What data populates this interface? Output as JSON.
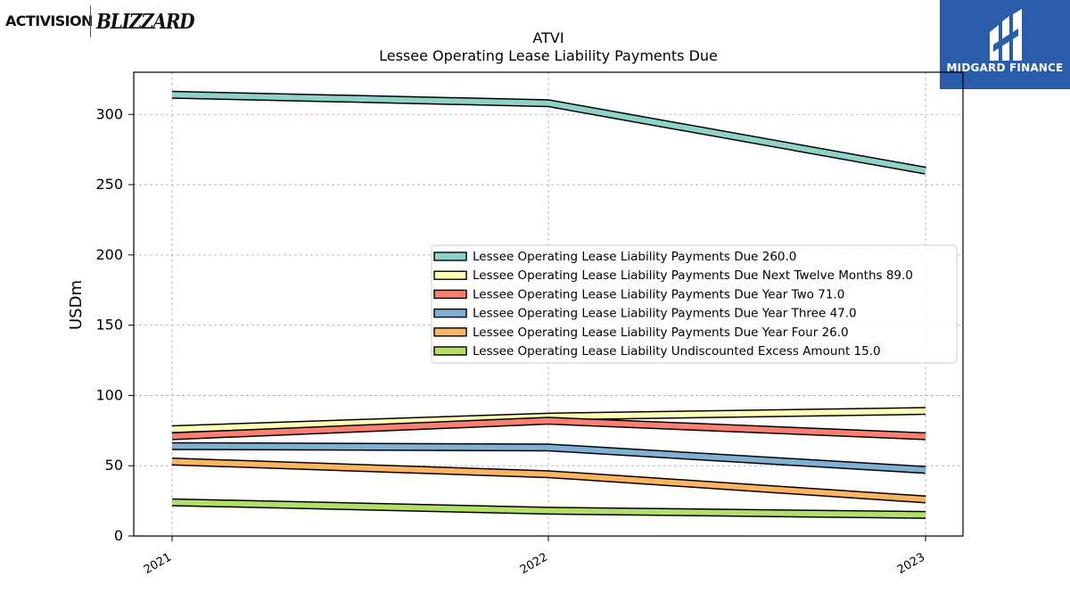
{
  "logos": {
    "left_primary": "ACTIVISION",
    "left_secondary": "BLIZZARD",
    "right_name": "MIDGARD FINANCE",
    "right_bg": "#2a5caa"
  },
  "chart_data": {
    "type": "line",
    "title": "ATVI",
    "subtitle": "Lessee Operating Lease Liability Payments Due",
    "xlabel": "",
    "ylabel": "USDm",
    "categories": [
      "2021",
      "2022",
      "2023"
    ],
    "ylim": [
      0,
      330
    ],
    "yticks": [
      0,
      50,
      100,
      150,
      200,
      250,
      300
    ],
    "grid": true,
    "legend_position": "center-right",
    "series": [
      {
        "name": "Lessee Operating Lease Liability Payments Due",
        "legend_value": "260.0",
        "values": [
          314,
          308,
          260
        ],
        "color": "#8dd3c7"
      },
      {
        "name": "Lessee Operating Lease Liability Payments Due Next Twelve Months",
        "legend_value": "89.0",
        "values": [
          76,
          85,
          89
        ],
        "color": "#ffffb3"
      },
      {
        "name": "Lessee Operating Lease Liability Payments Due Year Two",
        "legend_value": "71.0",
        "values": [
          71,
          82,
          71
        ],
        "color": "#fb8072"
      },
      {
        "name": "Lessee Operating Lease Liability Payments Due Year Three",
        "legend_value": "47.0",
        "values": [
          64,
          63,
          47
        ],
        "color": "#80b1d3"
      },
      {
        "name": "Lessee Operating Lease Liability Payments Due Year Four",
        "legend_value": "26.0",
        "values": [
          53,
          44,
          26
        ],
        "color": "#fdb462"
      },
      {
        "name": "Lessee Operating Lease Liability Undiscounted Excess Amount",
        "legend_value": "15.0",
        "values": [
          24,
          18,
          15
        ],
        "color": "#b3de69"
      }
    ]
  }
}
